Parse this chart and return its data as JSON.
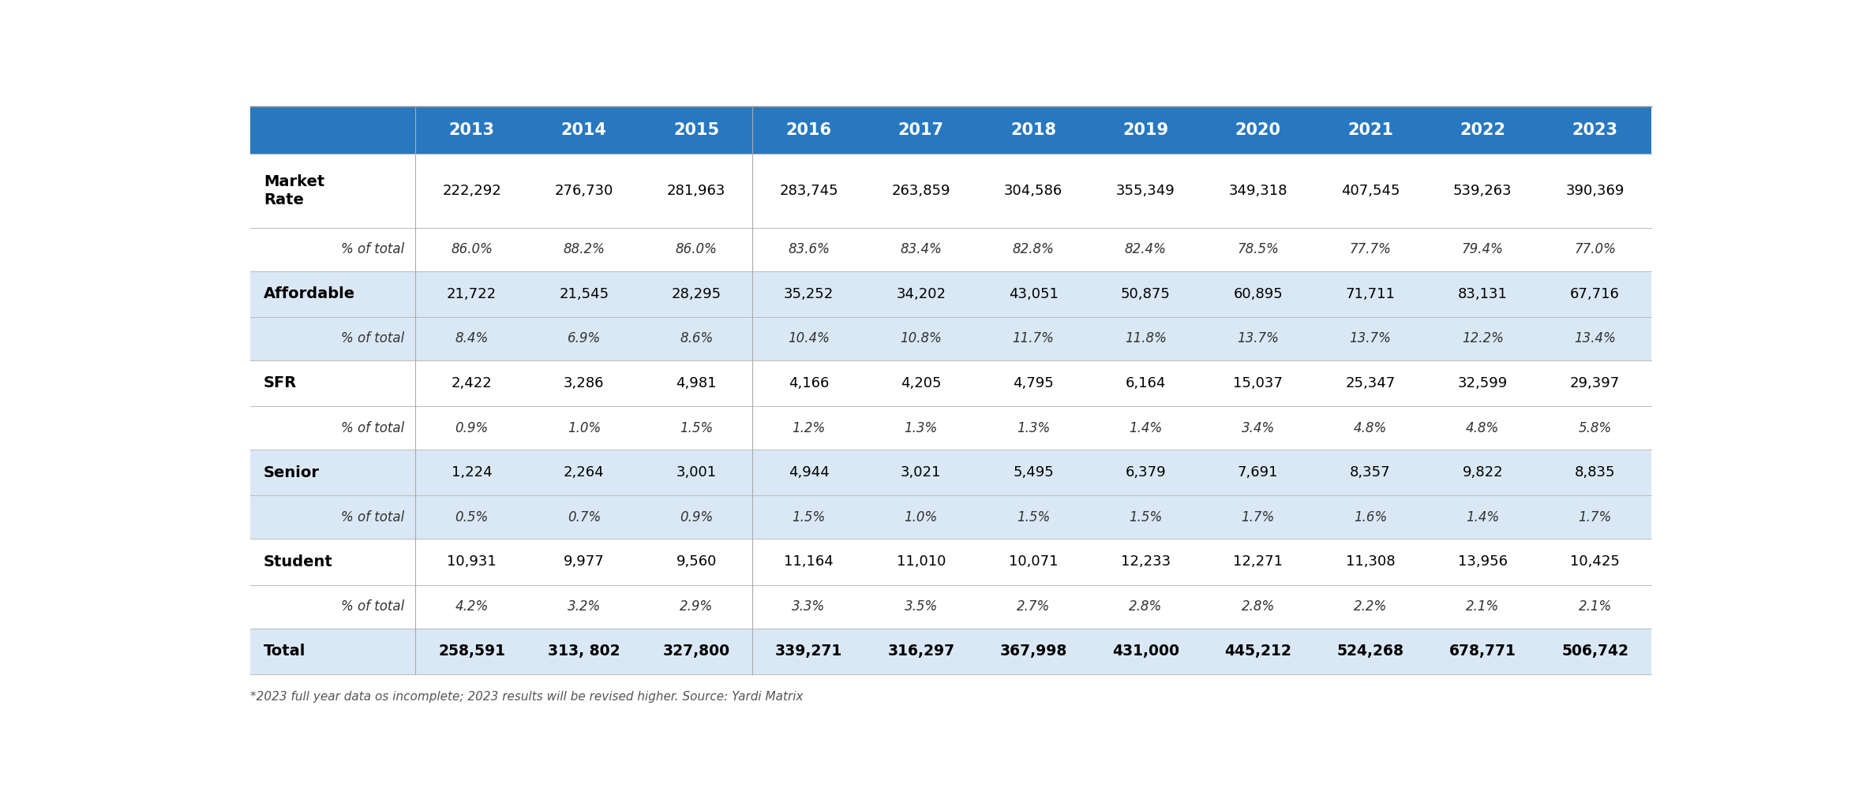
{
  "header_bg": "#2878C0",
  "header_text_color": "#FFFFFF",
  "row_bg_white": "#FFFFFF",
  "row_bg_blue": "#DAE8F5",
  "total_row_bg": "#DAE8F5",
  "border_color": "#AAAAAA",
  "years": [
    "2013",
    "2014",
    "2015",
    "2016",
    "2017",
    "2018",
    "2019",
    "2020",
    "2021",
    "2022",
    "2023"
  ],
  "rows": [
    {
      "label": "Market\nRate",
      "label_bold": true,
      "label_italic": false,
      "label_indent": false,
      "values": [
        "222,292",
        "276,730",
        "281,963",
        "283,745",
        "263,859",
        "304,586",
        "355,349",
        "349,318",
        "407,545",
        "539,263",
        "390,369"
      ],
      "bg": "#FFFFFF",
      "val_bold": false,
      "val_italic": false,
      "multiline": true
    },
    {
      "label": "% of total",
      "label_bold": false,
      "label_italic": true,
      "label_indent": true,
      "values": [
        "86.0%",
        "88.2%",
        "86.0%",
        "83.6%",
        "83.4%",
        "82.8%",
        "82.4%",
        "78.5%",
        "77.7%",
        "79.4%",
        "77.0%"
      ],
      "bg": "#FFFFFF",
      "val_bold": false,
      "val_italic": true,
      "multiline": false
    },
    {
      "label": "Affordable",
      "label_bold": true,
      "label_italic": false,
      "label_indent": false,
      "values": [
        "21,722",
        "21,545",
        "28,295",
        "35,252",
        "34,202",
        "43,051",
        "50,875",
        "60,895",
        "71,711",
        "83,131",
        "67,716"
      ],
      "bg": "#DAE8F5",
      "val_bold": false,
      "val_italic": false,
      "multiline": false
    },
    {
      "label": "% of total",
      "label_bold": false,
      "label_italic": true,
      "label_indent": true,
      "values": [
        "8.4%",
        "6.9%",
        "8.6%",
        "10.4%",
        "10.8%",
        "11.7%",
        "11.8%",
        "13.7%",
        "13.7%",
        "12.2%",
        "13.4%"
      ],
      "bg": "#DAE8F5",
      "val_bold": false,
      "val_italic": true,
      "multiline": false
    },
    {
      "label": "SFR",
      "label_bold": true,
      "label_italic": false,
      "label_indent": false,
      "values": [
        "2,422",
        "3,286",
        "4,981",
        "4,166",
        "4,205",
        "4,795",
        "6,164",
        "15,037",
        "25,347",
        "32,599",
        "29,397"
      ],
      "bg": "#FFFFFF",
      "val_bold": false,
      "val_italic": false,
      "multiline": false
    },
    {
      "label": "% of total",
      "label_bold": false,
      "label_italic": true,
      "label_indent": true,
      "values": [
        "0.9%",
        "1.0%",
        "1.5%",
        "1.2%",
        "1.3%",
        "1.3%",
        "1.4%",
        "3.4%",
        "4.8%",
        "4.8%",
        "5.8%"
      ],
      "bg": "#FFFFFF",
      "val_bold": false,
      "val_italic": true,
      "multiline": false
    },
    {
      "label": "Senior",
      "label_bold": true,
      "label_italic": false,
      "label_indent": false,
      "values": [
        "1,224",
        "2,264",
        "3,001",
        "4,944",
        "3,021",
        "5,495",
        "6,379",
        "7,691",
        "8,357",
        "9,822",
        "8,835"
      ],
      "bg": "#DAE8F5",
      "val_bold": false,
      "val_italic": false,
      "multiline": false
    },
    {
      "label": "% of total",
      "label_bold": false,
      "label_italic": true,
      "label_indent": true,
      "values": [
        "0.5%",
        "0.7%",
        "0.9%",
        "1.5%",
        "1.0%",
        "1.5%",
        "1.5%",
        "1.7%",
        "1.6%",
        "1.4%",
        "1.7%"
      ],
      "bg": "#DAE8F5",
      "val_bold": false,
      "val_italic": true,
      "multiline": false
    },
    {
      "label": "Student",
      "label_bold": true,
      "label_italic": false,
      "label_indent": false,
      "values": [
        "10,931",
        "9,977",
        "9,560",
        "11,164",
        "11,010",
        "10,071",
        "12,233",
        "12,271",
        "11,308",
        "13,956",
        "10,425"
      ],
      "bg": "#FFFFFF",
      "val_bold": false,
      "val_italic": false,
      "multiline": false
    },
    {
      "label": "% of total",
      "label_bold": false,
      "label_italic": true,
      "label_indent": true,
      "values": [
        "4.2%",
        "3.2%",
        "2.9%",
        "3.3%",
        "3.5%",
        "2.7%",
        "2.8%",
        "2.8%",
        "2.2%",
        "2.1%",
        "2.1%"
      ],
      "bg": "#FFFFFF",
      "val_bold": false,
      "val_italic": true,
      "multiline": false
    },
    {
      "label": "Total",
      "label_bold": true,
      "label_italic": false,
      "label_indent": false,
      "values": [
        "258,591",
        "313, 802",
        "327,800",
        "339,271",
        "316,297",
        "367,998",
        "431,000",
        "445,212",
        "524,268",
        "678,771",
        "506,742"
      ],
      "bg": "#DAE8F5",
      "val_bold": true,
      "val_italic": false,
      "multiline": false
    }
  ],
  "footnote": "*2023 full year data os incomplete; 2023 results will be revised higher. Source: Yardi Matrix",
  "figsize": [
    23.5,
    10.08
  ],
  "dpi": 100
}
